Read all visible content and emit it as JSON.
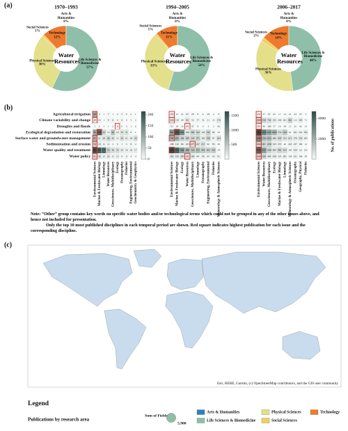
{
  "panel_labels": [
    "(a)",
    "(b)",
    "(c)"
  ],
  "note": [
    "Note: “Other” group contains key words on specific water bodies and/or technological terms which could not be grouped in any of the other issues above, and hence not included for presentation.",
    "Only the top 10 most published disciplines in each temporal period are shown. Red square indicates highest publication for each issue and the corresponding discipline."
  ],
  "chart_data": [
    {
      "type": "donut",
      "title": "1970–1993",
      "center_label": "Water Resources",
      "categories": [
        "Arts & Humanities",
        "Technology",
        "Social Sciences",
        "Physical Sciences",
        "Life Sciences & Biomedicine"
      ],
      "values": [
        0,
        12,
        1,
        30,
        57
      ],
      "value_labels": [
        "0%",
        "12%",
        "1%",
        "30%",
        "57%"
      ],
      "colors": [
        "#2e7fbf",
        "#ee7a2e",
        "#f2cf5f",
        "#e3df8b",
        "#8fbfa9"
      ]
    },
    {
      "type": "donut",
      "title": "1994–2005",
      "center_label": "Water Resources",
      "categories": [
        "Arts & Humanities",
        "Technology",
        "Social Sciences",
        "Physical Sciences",
        "Life Sciences & Biomedicine"
      ],
      "values": [
        0,
        11,
        1,
        33,
        54
      ],
      "value_labels": [
        "0%",
        "11%",
        "1%",
        "33%",
        "54%"
      ],
      "colors": [
        "#2e7fbf",
        "#ee7a2e",
        "#f2cf5f",
        "#e3df8b",
        "#8fbfa9"
      ]
    },
    {
      "type": "donut",
      "title": "2006–2017",
      "center_label": "Water Resources",
      "categories": [
        "Arts & Humanities",
        "Technology",
        "Social Sciences",
        "Physical Sciences",
        "Life Sciences & Biomedicine"
      ],
      "values": [
        0,
        14,
        2,
        36,
        48
      ],
      "value_labels": [
        "0%",
        "14%",
        "2%",
        "36%",
        "48%"
      ],
      "colors": [
        "#2e7fbf",
        "#ee7a2e",
        "#f2cf5f",
        "#e3df8b",
        "#8fbfa9"
      ]
    },
    {
      "type": "heatmap",
      "rows": [
        "Agricultural irrigation",
        "Climate variability and change",
        "Droughts and floods",
        "Ecological degradation and restoration",
        "Surface water and groundwater management",
        "Sedimentation and erosion",
        "Water quality and treatment",
        "Water policy"
      ],
      "columns": [
        "Environmental Sciences",
        "Marine & Freshwater Biology",
        "Limnology",
        "Water Resources",
        "Geosciences, Multidisciplinary",
        "Ecology",
        "Oceanography",
        "Fisheries",
        "Engineering, Environmental",
        "Geochemistry & Geophysics"
      ],
      "values": [
        [
          98,
          3,
          1,
          7,
          1,
          2,
          5,
          0,
          2,
          1
        ],
        [
          24,
          14,
          1,
          9,
          8,
          4,
          6,
          0,
          3,
          2
        ],
        [
          1,
          2,
          1,
          1,
          2,
          6,
          0,
          3,
          1,
          0
        ],
        [
          99,
          178,
          43,
          12,
          66,
          16,
          30,
          31,
          6,
          1
        ],
        [
          85,
          21,
          28,
          46,
          30,
          12,
          36,
          21,
          18,
          36
        ],
        [
          56,
          18,
          11,
          11,
          5,
          6,
          3,
          5,
          8,
          4
        ],
        [
          207,
          190,
          175,
          55,
          36,
          35,
          20,
          16,
          16,
          17
        ],
        [
          41,
          30,
          15,
          22,
          11,
          13,
          6,
          9,
          4,
          3
        ]
      ],
      "zlim": [
        0,
        215
      ],
      "zticks": [
        0,
        50,
        100,
        150,
        200
      ],
      "colors": [
        "#f7fbf9",
        "#2c4a44"
      ]
    },
    {
      "type": "heatmap",
      "columns": [
        "Environmental Sciences",
        "Marine & Freshwater Biology",
        "Ecology",
        "Water Resources",
        "Geosciences, Multidisciplinary",
        "Limnology",
        "Oceanography",
        "Engineering, Environmental",
        "Fisheries",
        "Meteorology & Atmospheric Sciences"
      ],
      "values": [
        [
          118,
          12,
          21,
          67,
          28,
          8,
          6,
          28,
          2,
          9
        ],
        [
          234,
          114,
          49,
          201,
          53,
          57,
          32,
          51,
          23,
          178
        ],
        [
          57,
          18,
          16,
          94,
          37,
          9,
          0,
          3,
          3,
          42
        ],
        [
          892,
          1481,
          982,
          168,
          382,
          342,
          143,
          345,
          84,
          24
        ],
        [
          704,
          635,
          386,
          369,
          328,
          371,
          163,
          356,
          87,
          264
        ],
        [
          138,
          110,
          86,
          103,
          277,
          227,
          257,
          60,
          85,
          26
        ],
        [
          1609,
          1380,
          896,
          698,
          526,
          572,
          454,
          402,
          422,
          34
        ],
        [
          185,
          156,
          209,
          232,
          169,
          84,
          96,
          65,
          63,
          81
        ]
      ],
      "zlim": [
        0,
        1650
      ],
      "zticks": [
        500,
        1000,
        1500
      ],
      "colors": [
        "#f7fbf9",
        "#2c4a44"
      ]
    },
    {
      "type": "heatmap",
      "columns": [
        "Environmental Sciences",
        "Water Resources",
        "Geosciences, Multidisciplinary",
        "Ecology",
        "Marine & Freshwater Biology",
        "Limnology",
        "Meteorology & Atmospheric Sciences",
        "Oceanography",
        "Geography, Physical",
        "Fisheries"
      ],
      "values": [
        [
          232,
          37,
          97,
          61,
          17,
          14,
          21,
          43,
          23,
          3
        ],
        [
          1094,
          918,
          706,
          335,
          240,
          261,
          962,
          113,
          369,
          71
        ],
        [
          202,
          90,
          196,
          57,
          19,
          28,
          15,
          32,
          42,
          15
        ],
        [
          4634,
          3129,
          2267,
          1868,
          752,
          1323,
          81,
          261,
          222,
          395
        ],
        [
          2960,
          1566,
          1612,
          666,
          839,
          553,
          613,
          378,
          536,
          265
        ],
        [
          1092,
          981,
          1056,
          333,
          337,
          40,
          243,
          237,
          190,
          14
        ],
        [
          3945,
          2391,
          1036,
          604,
          983,
          814,
          163,
          414,
          112,
          141
        ],
        [
          1026,
          928,
          440,
          416,
          223,
          281,
          126,
          231,
          146,
          58
        ]
      ],
      "zlim": [
        0,
        4700
      ],
      "zticks": [
        2000,
        4000
      ],
      "colorbar_label": "No. of publications",
      "colors": [
        "#f7fbf9",
        "#2c4a44"
      ]
    },
    {
      "type": "map",
      "attribution": "Esri, HERE, Garmin, (c) OpenStreetMap contributors, and the GIS user community",
      "legend_title": "Legend",
      "legend_subtitle": "Publications by research area",
      "size_legend_title": "Sum of Fields",
      "size_legend": {
        "value": 5900,
        "label": "5,900"
      },
      "series": [
        {
          "name": "Arts & Humanities",
          "color": "#2e7fbf"
        },
        {
          "name": "Physical Sciences",
          "color": "#e3df8b"
        },
        {
          "name": "Technology",
          "color": "#ee7a2e"
        },
        {
          "name": "Life Sciences & Biomedicine",
          "color": "#8fbfa9"
        },
        {
          "name": "Social Sciences",
          "color": "#f2cf5f"
        }
      ]
    }
  ]
}
